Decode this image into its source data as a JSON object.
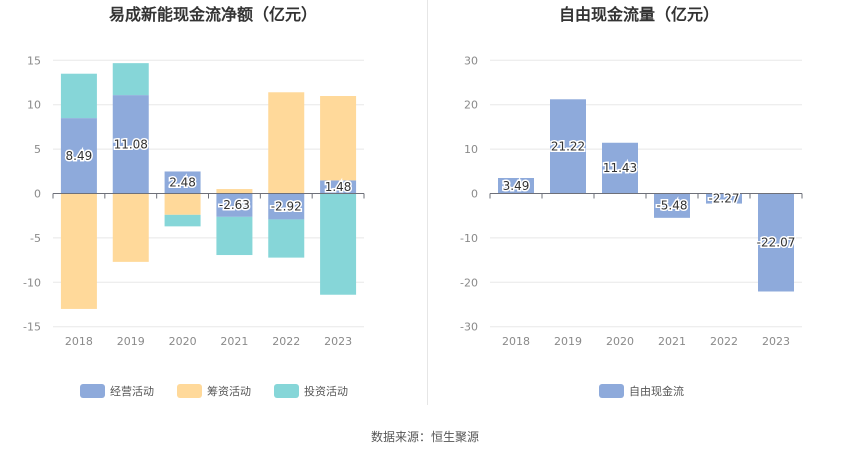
{
  "chart_data": [
    {
      "type": "bar",
      "stacked": true,
      "title": "易成新能现金流净额（亿元）",
      "categories": [
        "2018",
        "2019",
        "2020",
        "2021",
        "2022",
        "2023"
      ],
      "series": [
        {
          "name": "经营活动",
          "color": "#8eaadb",
          "values": [
            8.49,
            11.08,
            2.48,
            -2.63,
            -2.92,
            1.48
          ]
        },
        {
          "name": "筹资活动",
          "color": "#ffd99a",
          "values": [
            -13.0,
            -7.7,
            -2.4,
            0.5,
            11.4,
            9.5
          ]
        },
        {
          "name": "投资活动",
          "color": "#86d6d8",
          "values": [
            5.0,
            3.6,
            -1.3,
            -4.3,
            -4.3,
            -11.4
          ]
        }
      ],
      "data_labels": [
        "8.49",
        "11.08",
        "2.48",
        "-2.63",
        "-2.92",
        "1.48"
      ],
      "yticks": [
        15,
        10,
        5,
        0,
        -5,
        -10,
        -15
      ],
      "ylim": [
        -15,
        15
      ],
      "grid": true,
      "legend": "bottom"
    },
    {
      "type": "bar",
      "title": "自由现金流量（亿元）",
      "categories": [
        "2018",
        "2019",
        "2020",
        "2021",
        "2022",
        "2023"
      ],
      "series": [
        {
          "name": "自由现金流",
          "color": "#8eaadb",
          "values": [
            3.49,
            21.22,
            11.43,
            -5.48,
            -2.27,
            -22.07
          ]
        }
      ],
      "data_labels": [
        "3.49",
        "21.22",
        "11.43",
        "-5.48",
        "-2.27",
        "-22.07"
      ],
      "yticks": [
        30,
        20,
        10,
        0,
        -10,
        -20,
        -30
      ],
      "ylim": [
        -30,
        30
      ],
      "grid": true,
      "legend": "bottom"
    }
  ],
  "footer": {
    "source": "数据来源：恒生聚源"
  }
}
